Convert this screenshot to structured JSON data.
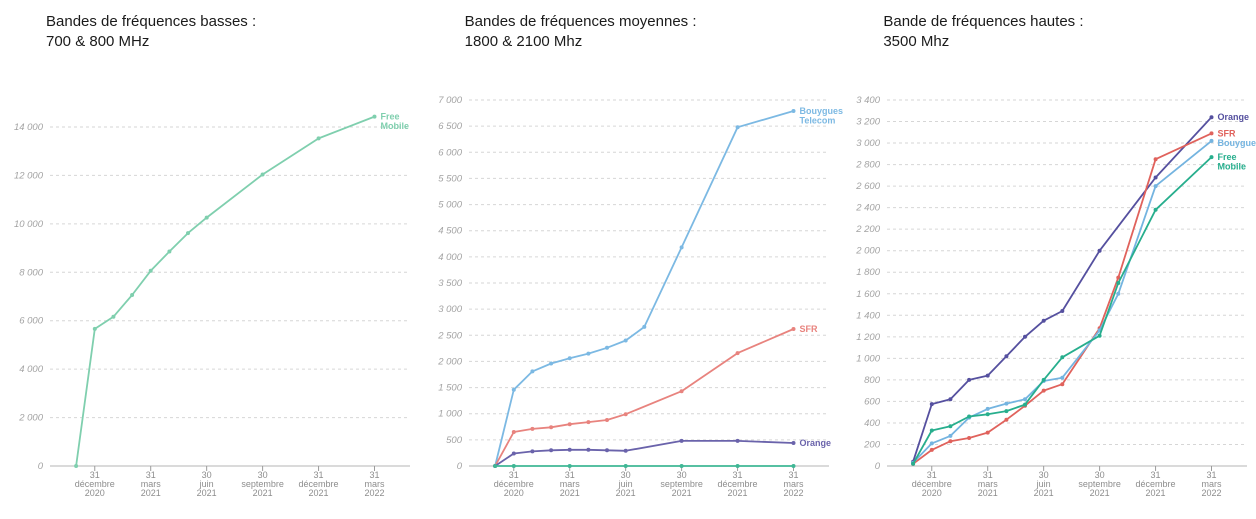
{
  "timeline": {
    "ticks": [
      {
        "m": 1,
        "day": "31",
        "month": "décembre",
        "year": "2020"
      },
      {
        "m": 4,
        "day": "31",
        "month": "mars",
        "year": "2021"
      },
      {
        "m": 7,
        "day": "30",
        "month": "juin",
        "year": "2021"
      },
      {
        "m": 10,
        "day": "30",
        "month": "septembre",
        "year": "2021"
      },
      {
        "m": 13,
        "day": "31",
        "month": "décembre",
        "year": "2021"
      },
      {
        "m": 16,
        "day": "31",
        "month": "mars",
        "year": "2022"
      }
    ]
  },
  "chart_data": [
    {
      "type": "line",
      "title_line1": "Bandes de fréquences basses :",
      "title_line2": "700 & 800 MHz",
      "y_axis": {
        "min": 0,
        "max": 14000,
        "step": 2000
      },
      "grid": "dashed-horizontal",
      "legend_position": "line-end-labels",
      "series": [
        {
          "name": "Free Mobile",
          "label_lines": [
            "Free",
            "Mobile"
          ],
          "color": "#7fcfae",
          "points": [
            [
              0,
              0
            ],
            [
              1,
              5660
            ],
            [
              2,
              6160
            ],
            [
              3,
              7060
            ],
            [
              4,
              8060
            ],
            [
              5,
              8860
            ],
            [
              6,
              9620
            ],
            [
              7,
              10260
            ],
            [
              10,
              12040
            ],
            [
              13,
              13530
            ],
            [
              16,
              14430
            ]
          ]
        }
      ]
    },
    {
      "type": "line",
      "title_line1": "Bandes de fréquences moyennes :",
      "title_line2": "1800 & 2100 Mhz",
      "y_axis": {
        "min": 0,
        "max": 7000,
        "step": 500
      },
      "grid": "dashed-horizontal",
      "legend_position": "line-end-labels",
      "series": [
        {
          "name": "Bouygues Telecom",
          "label_lines": [
            "Bouygues",
            "Telecom"
          ],
          "color": "#7cb9e3",
          "points": [
            [
              0,
              0
            ],
            [
              1,
              1460
            ],
            [
              2,
              1810
            ],
            [
              3,
              1960
            ],
            [
              4,
              2060
            ],
            [
              5,
              2150
            ],
            [
              6,
              2260
            ],
            [
              7,
              2400
            ],
            [
              8,
              2660
            ],
            [
              10,
              4180
            ],
            [
              13,
              6480
            ],
            [
              16,
              6790
            ]
          ]
        },
        {
          "name": "SFR",
          "label_lines": [
            "SFR"
          ],
          "color": "#e8837e",
          "points": [
            [
              0,
              0
            ],
            [
              1,
              650
            ],
            [
              2,
              710
            ],
            [
              3,
              740
            ],
            [
              4,
              800
            ],
            [
              5,
              840
            ],
            [
              6,
              880
            ],
            [
              7,
              990
            ],
            [
              10,
              1430
            ],
            [
              13,
              2160
            ],
            [
              16,
              2620
            ]
          ]
        },
        {
          "name": "Orange",
          "label_lines": [
            "Orange"
          ],
          "color": "#6a63ab",
          "points": [
            [
              0,
              0
            ],
            [
              1,
              240
            ],
            [
              2,
              280
            ],
            [
              3,
              300
            ],
            [
              4,
              310
            ],
            [
              5,
              310
            ],
            [
              6,
              300
            ],
            [
              7,
              290
            ],
            [
              10,
              480
            ],
            [
              13,
              480
            ],
            [
              16,
              440
            ]
          ]
        },
        {
          "name": "Free Mobile",
          "label_lines": [],
          "color": "#3fb795",
          "points": [
            [
              0,
              0
            ],
            [
              1,
              0
            ],
            [
              4,
              0
            ],
            [
              7,
              0
            ],
            [
              10,
              0
            ],
            [
              13,
              0
            ],
            [
              16,
              0
            ]
          ]
        }
      ]
    },
    {
      "type": "line",
      "title_line1": "Bande de fréquences hautes :",
      "title_line2": "3500 Mhz",
      "y_axis": {
        "min": 0,
        "max": 3400,
        "step": 200
      },
      "grid": "dashed-horizontal",
      "legend_position": "line-end-labels",
      "series": [
        {
          "name": "Orange",
          "label_lines": [
            "Orange"
          ],
          "color": "#55509f",
          "points": [
            [
              0,
              40
            ],
            [
              1,
              575
            ],
            [
              2,
              620
            ],
            [
              3,
              800
            ],
            [
              4,
              840
            ],
            [
              5,
              1020
            ],
            [
              6,
              1200
            ],
            [
              7,
              1350
            ],
            [
              8,
              1440
            ],
            [
              10,
              2000
            ],
            [
              13,
              2680
            ],
            [
              16,
              3240
            ]
          ]
        },
        {
          "name": "SFR",
          "label_lines": [
            "SFR"
          ],
          "color": "#e0625c",
          "points": [
            [
              0,
              20
            ],
            [
              1,
              150
            ],
            [
              2,
              230
            ],
            [
              3,
              260
            ],
            [
              4,
              310
            ],
            [
              5,
              430
            ],
            [
              6,
              560
            ],
            [
              7,
              700
            ],
            [
              8,
              760
            ],
            [
              10,
              1280
            ],
            [
              11,
              1750
            ],
            [
              13,
              2850
            ],
            [
              16,
              3090
            ]
          ]
        },
        {
          "name": "Bouygues Telecom",
          "label_lines": [
            "Bouygues"
          ],
          "color": "#74b4e0",
          "points": [
            [
              0,
              30
            ],
            [
              1,
              210
            ],
            [
              2,
              280
            ],
            [
              3,
              450
            ],
            [
              4,
              530
            ],
            [
              5,
              580
            ],
            [
              6,
              620
            ],
            [
              7,
              790
            ],
            [
              8,
              820
            ],
            [
              10,
              1260
            ],
            [
              11,
              1600
            ],
            [
              13,
              2600
            ],
            [
              16,
              3020
            ]
          ]
        },
        {
          "name": "Free Mobile",
          "label_lines": [
            "Free",
            "Mobile"
          ],
          "color": "#27ae8d",
          "points": [
            [
              0,
              20
            ],
            [
              1,
              330
            ],
            [
              2,
              370
            ],
            [
              3,
              460
            ],
            [
              4,
              480
            ],
            [
              5,
              510
            ],
            [
              6,
              570
            ],
            [
              7,
              800
            ],
            [
              8,
              1010
            ],
            [
              10,
              1210
            ],
            [
              11,
              1700
            ],
            [
              13,
              2380
            ],
            [
              16,
              2870
            ]
          ]
        }
      ]
    }
  ]
}
